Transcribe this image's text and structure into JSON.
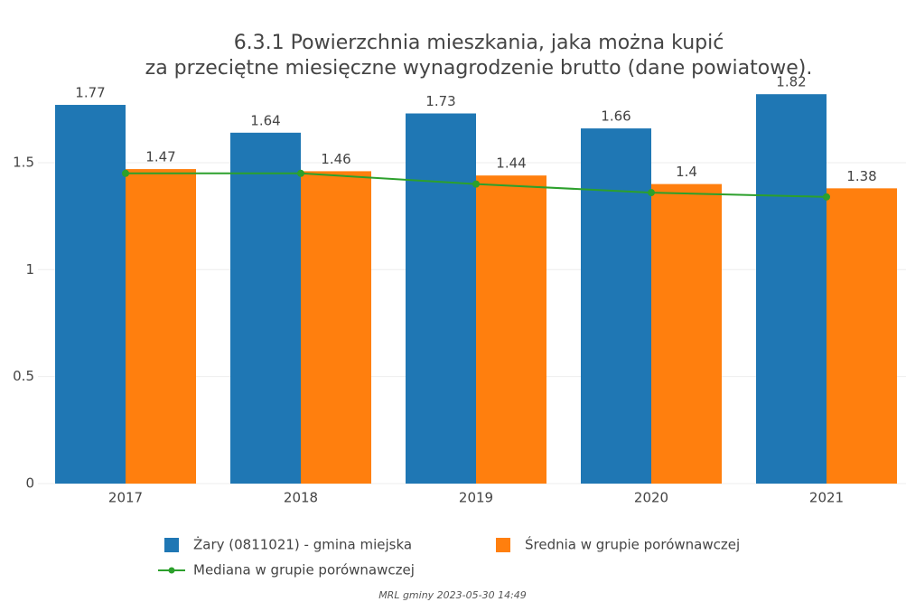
{
  "chart_data": {
    "type": "bar",
    "title": [
      "6.3.1 Powierzchnia mieszkania, jaka można kupić",
      "za przeciętne miesięczne wynagrodzenie brutto (dane powiatowe)."
    ],
    "categories": [
      "2017",
      "2018",
      "2019",
      "2020",
      "2021"
    ],
    "series": [
      {
        "name": "Żary (0811021) - gmina miejska",
        "color": "#1f77b4",
        "type": "bar",
        "values": [
          1.77,
          1.64,
          1.73,
          1.66,
          1.82
        ]
      },
      {
        "name": "Średnia w grupie porównawczej",
        "color": "#ff7f0e",
        "type": "bar",
        "values": [
          1.47,
          1.46,
          1.44,
          1.4,
          1.38
        ]
      },
      {
        "name": "Mediana w grupie porównawczej",
        "color": "#2ca02c",
        "type": "line",
        "values": [
          1.45,
          1.45,
          1.4,
          1.36,
          1.34
        ]
      }
    ],
    "ylim": [
      0,
      1.88
    ],
    "yticks": [
      0,
      0.5,
      1,
      1.5
    ],
    "grid": true,
    "footer": "MRL gminy 2023-05-30 14:49"
  }
}
